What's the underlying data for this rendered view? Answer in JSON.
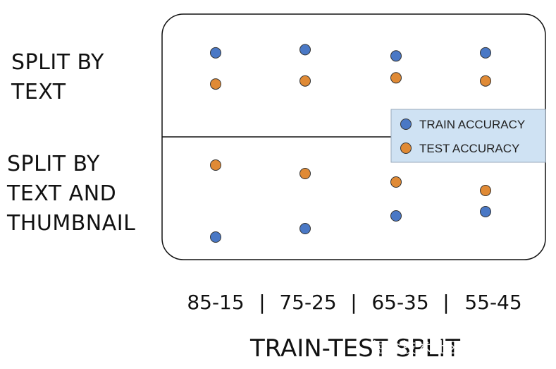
{
  "chart_data": {
    "type": "scatter",
    "title": "",
    "xlabel": "TRAIN-TEST SPLIT",
    "categories": [
      "85-15",
      "75-25",
      "65-35",
      "55-45"
    ],
    "panels": [
      {
        "label": "SPLIT BY TEXT",
        "series": [
          {
            "name": "TRAIN ACCURACY",
            "values": [
              0.99,
              0.995,
              0.985,
              0.99
            ]
          },
          {
            "name": "TEST ACCURACY",
            "values": [
              0.94,
              0.945,
              0.95,
              0.945
            ]
          }
        ]
      },
      {
        "label": "SPLIT BY TEXT AND THUMBNAIL",
        "series": [
          {
            "name": "TRAIN ACCURACY",
            "values": [
              0.55,
              0.57,
              0.6,
              0.61
            ]
          },
          {
            "name": "TEST ACCURACY",
            "values": [
              0.72,
              0.7,
              0.68,
              0.66
            ]
          }
        ]
      }
    ],
    "legend": [
      {
        "name": "TRAIN ACCURACY",
        "color": "#4a78c5"
      },
      {
        "name": "TEST ACCURACY",
        "color": "#e08a35"
      }
    ],
    "legend_position": "right-middle",
    "grid": false
  },
  "row_labels": {
    "top": [
      "SPLIT BY",
      "TEXT"
    ],
    "bottom": [
      "SPLIT BY",
      "TEXT AND",
      "THUMBNAIL"
    ]
  },
  "separator": "|",
  "watermark": "掘金技术社区 @ 布客飞龙",
  "colors": {
    "train": "#4a78c5",
    "test": "#e08a35",
    "legend_bg": "#cfe2f3",
    "frame": "#111111"
  }
}
